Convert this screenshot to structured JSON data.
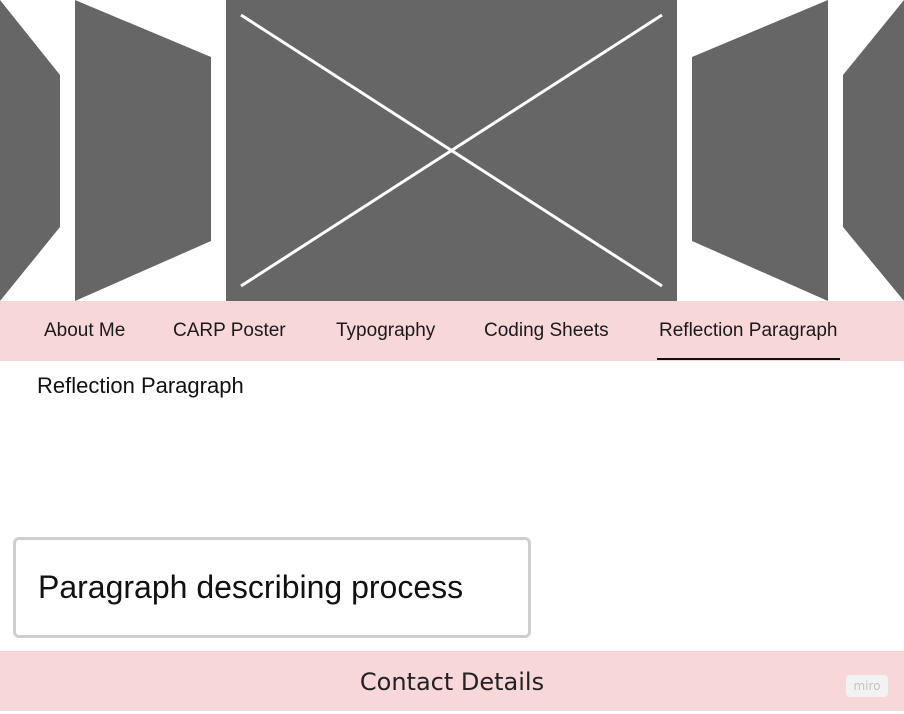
{
  "nav": {
    "items": [
      {
        "label": "About Me"
      },
      {
        "label": "CARP Poster"
      },
      {
        "label": "Typography"
      },
      {
        "label": "Coding Sheets"
      },
      {
        "label": "Reflection Paragraph",
        "active": true
      }
    ]
  },
  "section": {
    "heading": "Reflection Paragraph",
    "process_text": "Paragraph describing process"
  },
  "footer": {
    "title": "Contact Details"
  },
  "badge": {
    "label": "miro"
  },
  "colors": {
    "band": "#f8d7d8",
    "placeholder": "#666666"
  }
}
